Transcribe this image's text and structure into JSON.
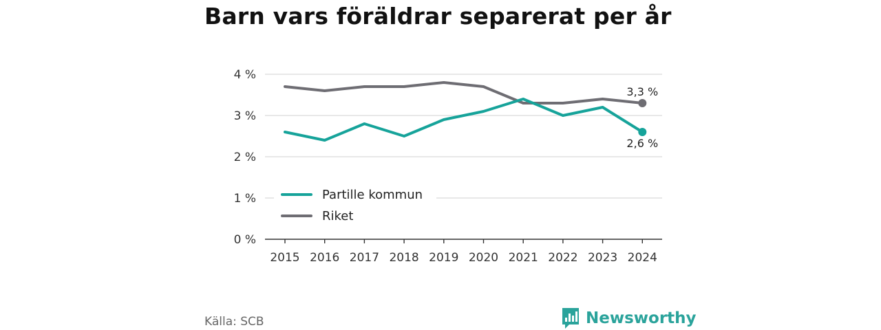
{
  "title": "Barn vars föräldrar separerat per år",
  "source": "Källa: SCB",
  "brand": {
    "name": "Newsworthy",
    "icon": "newsworthy-logo-icon",
    "color": "#2aa39b"
  },
  "chart_data": {
    "type": "line",
    "title": "Barn vars föräldrar separerat per år",
    "x": [
      "2015",
      "2016",
      "2017",
      "2018",
      "2019",
      "2020",
      "2021",
      "2022",
      "2023",
      "2024"
    ],
    "yticks": [
      0,
      1,
      2,
      3,
      4
    ],
    "ytick_labels": [
      "0 %",
      "1 %",
      "2 %",
      "3 %",
      "4 %"
    ],
    "ylim": [
      0,
      4
    ],
    "grid": true,
    "legend_position": "bottom-left",
    "series": [
      {
        "name": "Partille kommun",
        "color": "#16a39a",
        "values": [
          2.6,
          2.4,
          2.8,
          2.5,
          2.9,
          3.1,
          3.4,
          3.0,
          3.2,
          2.6
        ],
        "end_label": "2,6 %"
      },
      {
        "name": "Riket",
        "color": "#6e6d73",
        "values": [
          3.7,
          3.6,
          3.7,
          3.7,
          3.8,
          3.7,
          3.3,
          3.3,
          3.4,
          3.3
        ],
        "end_label": "3,3 %"
      }
    ]
  }
}
